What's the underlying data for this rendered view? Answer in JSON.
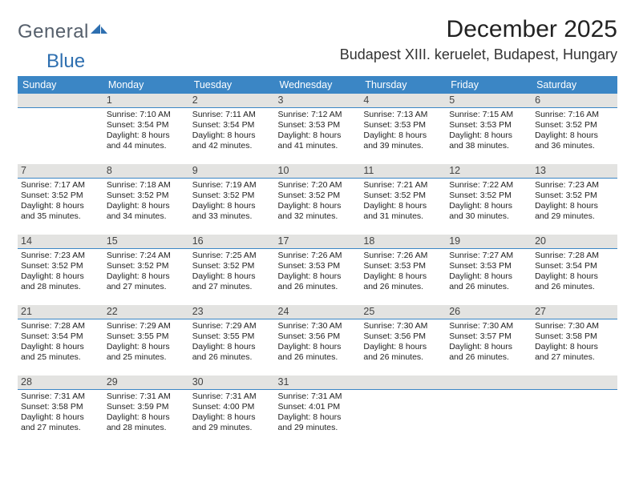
{
  "logo": {
    "word1": "General",
    "word2": "Blue"
  },
  "title": "December 2025",
  "location": "Budapest XIII. keruelet, Budapest, Hungary",
  "weekdays": [
    "Sunday",
    "Monday",
    "Tuesday",
    "Wednesday",
    "Thursday",
    "Friday",
    "Saturday"
  ],
  "style": {
    "header_bg": "#3b86c5",
    "header_fg": "#ffffff",
    "daybar_bg": "#e3e3e1",
    "daybar_border": "#3b86c5",
    "body_font_size_pt": 10.5,
    "weekday_font_size_pt": 12.5,
    "title_font_size_pt": 30,
    "location_font_size_pt": 18
  },
  "label_prefix": {
    "sunrise": "Sunrise: ",
    "sunset": "Sunset: ",
    "daylight": "Daylight: "
  },
  "weeks": [
    [
      {
        "blank": true
      },
      {
        "n": "1",
        "sunrise": "7:10 AM",
        "sunset": "3:54 PM",
        "daylight": "8 hours and 44 minutes."
      },
      {
        "n": "2",
        "sunrise": "7:11 AM",
        "sunset": "3:54 PM",
        "daylight": "8 hours and 42 minutes."
      },
      {
        "n": "3",
        "sunrise": "7:12 AM",
        "sunset": "3:53 PM",
        "daylight": "8 hours and 41 minutes."
      },
      {
        "n": "4",
        "sunrise": "7:13 AM",
        "sunset": "3:53 PM",
        "daylight": "8 hours and 39 minutes."
      },
      {
        "n": "5",
        "sunrise": "7:15 AM",
        "sunset": "3:53 PM",
        "daylight": "8 hours and 38 minutes."
      },
      {
        "n": "6",
        "sunrise": "7:16 AM",
        "sunset": "3:52 PM",
        "daylight": "8 hours and 36 minutes."
      }
    ],
    [
      {
        "n": "7",
        "sunrise": "7:17 AM",
        "sunset": "3:52 PM",
        "daylight": "8 hours and 35 minutes."
      },
      {
        "n": "8",
        "sunrise": "7:18 AM",
        "sunset": "3:52 PM",
        "daylight": "8 hours and 34 minutes."
      },
      {
        "n": "9",
        "sunrise": "7:19 AM",
        "sunset": "3:52 PM",
        "daylight": "8 hours and 33 minutes."
      },
      {
        "n": "10",
        "sunrise": "7:20 AM",
        "sunset": "3:52 PM",
        "daylight": "8 hours and 32 minutes."
      },
      {
        "n": "11",
        "sunrise": "7:21 AM",
        "sunset": "3:52 PM",
        "daylight": "8 hours and 31 minutes."
      },
      {
        "n": "12",
        "sunrise": "7:22 AM",
        "sunset": "3:52 PM",
        "daylight": "8 hours and 30 minutes."
      },
      {
        "n": "13",
        "sunrise": "7:23 AM",
        "sunset": "3:52 PM",
        "daylight": "8 hours and 29 minutes."
      }
    ],
    [
      {
        "n": "14",
        "sunrise": "7:23 AM",
        "sunset": "3:52 PM",
        "daylight": "8 hours and 28 minutes."
      },
      {
        "n": "15",
        "sunrise": "7:24 AM",
        "sunset": "3:52 PM",
        "daylight": "8 hours and 27 minutes."
      },
      {
        "n": "16",
        "sunrise": "7:25 AM",
        "sunset": "3:52 PM",
        "daylight": "8 hours and 27 minutes."
      },
      {
        "n": "17",
        "sunrise": "7:26 AM",
        "sunset": "3:53 PM",
        "daylight": "8 hours and 26 minutes."
      },
      {
        "n": "18",
        "sunrise": "7:26 AM",
        "sunset": "3:53 PM",
        "daylight": "8 hours and 26 minutes."
      },
      {
        "n": "19",
        "sunrise": "7:27 AM",
        "sunset": "3:53 PM",
        "daylight": "8 hours and 26 minutes."
      },
      {
        "n": "20",
        "sunrise": "7:28 AM",
        "sunset": "3:54 PM",
        "daylight": "8 hours and 26 minutes."
      }
    ],
    [
      {
        "n": "21",
        "sunrise": "7:28 AM",
        "sunset": "3:54 PM",
        "daylight": "8 hours and 25 minutes."
      },
      {
        "n": "22",
        "sunrise": "7:29 AM",
        "sunset": "3:55 PM",
        "daylight": "8 hours and 25 minutes."
      },
      {
        "n": "23",
        "sunrise": "7:29 AM",
        "sunset": "3:55 PM",
        "daylight": "8 hours and 26 minutes."
      },
      {
        "n": "24",
        "sunrise": "7:30 AM",
        "sunset": "3:56 PM",
        "daylight": "8 hours and 26 minutes."
      },
      {
        "n": "25",
        "sunrise": "7:30 AM",
        "sunset": "3:56 PM",
        "daylight": "8 hours and 26 minutes."
      },
      {
        "n": "26",
        "sunrise": "7:30 AM",
        "sunset": "3:57 PM",
        "daylight": "8 hours and 26 minutes."
      },
      {
        "n": "27",
        "sunrise": "7:30 AM",
        "sunset": "3:58 PM",
        "daylight": "8 hours and 27 minutes."
      }
    ],
    [
      {
        "n": "28",
        "sunrise": "7:31 AM",
        "sunset": "3:58 PM",
        "daylight": "8 hours and 27 minutes."
      },
      {
        "n": "29",
        "sunrise": "7:31 AM",
        "sunset": "3:59 PM",
        "daylight": "8 hours and 28 minutes."
      },
      {
        "n": "30",
        "sunrise": "7:31 AM",
        "sunset": "4:00 PM",
        "daylight": "8 hours and 29 minutes."
      },
      {
        "n": "31",
        "sunrise": "7:31 AM",
        "sunset": "4:01 PM",
        "daylight": "8 hours and 29 minutes."
      },
      {
        "blank": true
      },
      {
        "blank": true
      },
      {
        "blank": true
      }
    ]
  ]
}
